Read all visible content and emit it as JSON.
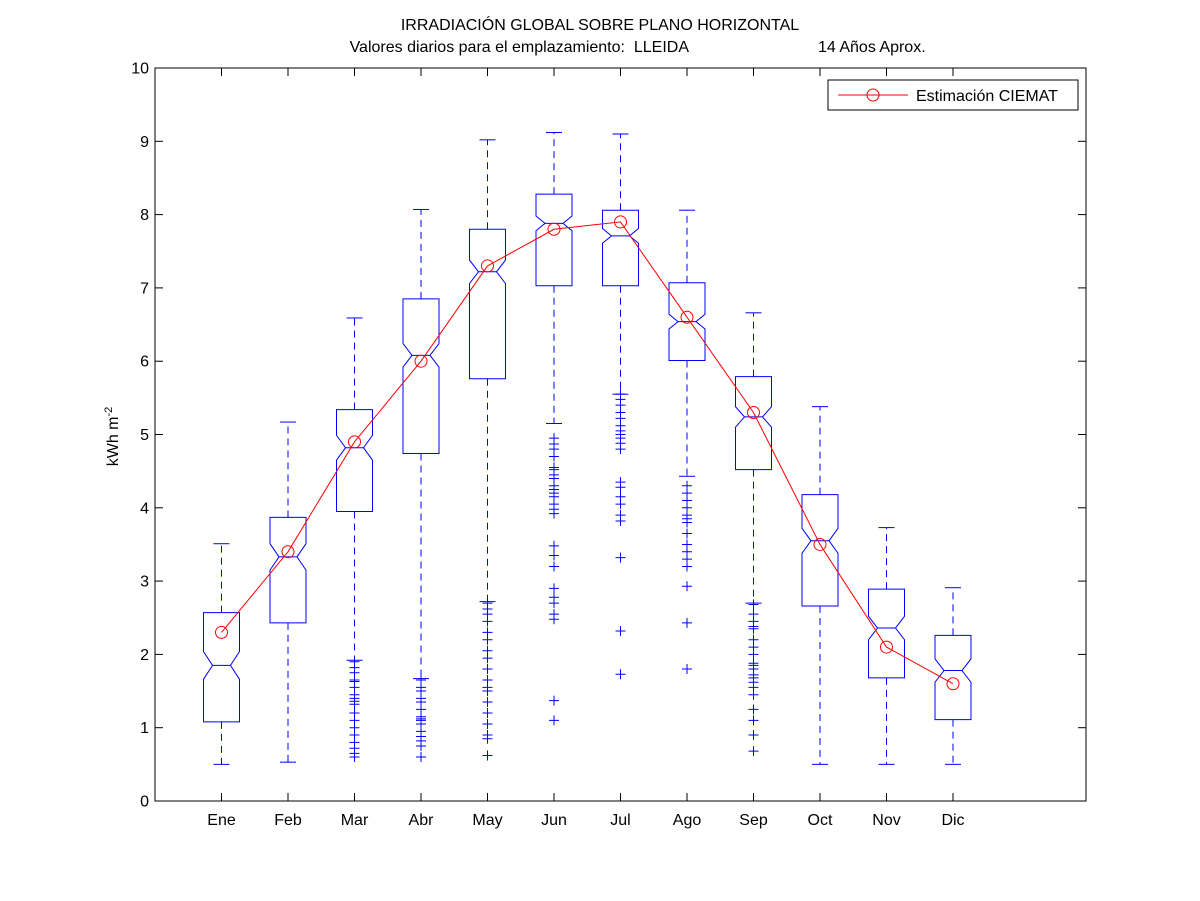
{
  "chart_data": {
    "type": "box",
    "title": "IRRADIACIÓN GLOBAL SOBRE PLANO HORIZONTAL",
    "subtitle": "Valores diarios para el emplazamiento:  LLEIDA",
    "subtitle_right": "14 Años Aprox.",
    "ylabel": "kWh m",
    "ylabel_superscript": "-2",
    "ylim": [
      0,
      10
    ],
    "yticks": [
      0,
      1,
      2,
      3,
      4,
      5,
      6,
      7,
      8,
      9,
      10
    ],
    "categories": [
      "Ene",
      "Feb",
      "Mar",
      "Abr",
      "May",
      "Jun",
      "Jul",
      "Ago",
      "Sep",
      "Oct",
      "Nov",
      "Dic"
    ],
    "boxes": [
      {
        "q1": 1.08,
        "median": 1.85,
        "q3": 2.57,
        "whisker_low": 0.5,
        "whisker_high": 3.51,
        "notch_low": 1.66,
        "notch_high": 2.04,
        "outliers": []
      },
      {
        "q1": 2.43,
        "median": 3.33,
        "q3": 3.87,
        "whisker_low": 0.53,
        "whisker_high": 5.17,
        "notch_low": 3.15,
        "notch_high": 3.51,
        "outliers": []
      },
      {
        "q1": 3.95,
        "median": 4.82,
        "q3": 5.34,
        "whisker_low": 1.92,
        "whisker_high": 6.59,
        "notch_low": 4.65,
        "notch_high": 4.99,
        "outliers": [
          1.9,
          1.82,
          1.75,
          1.65,
          1.63,
          1.55,
          1.45,
          1.4,
          1.36,
          1.32,
          1.2,
          1.1,
          1.0,
          0.9,
          0.8,
          0.72,
          0.65,
          0.6
        ]
      },
      {
        "q1": 4.74,
        "median": 6.08,
        "q3": 6.85,
        "whisker_low": 1.67,
        "whisker_high": 8.07,
        "notch_low": 5.92,
        "notch_high": 6.24,
        "outliers": [
          1.65,
          1.55,
          1.5,
          1.4,
          1.35,
          1.25,
          1.15,
          1.12,
          1.1,
          1.05,
          0.95,
          0.88,
          0.82,
          0.75,
          0.6
        ]
      },
      {
        "q1": 5.76,
        "median": 7.22,
        "q3": 7.8,
        "whisker_low": 2.72,
        "whisker_high": 9.02,
        "notch_low": 7.06,
        "notch_high": 7.38,
        "outliers": [
          2.7,
          2.62,
          2.55,
          2.45,
          2.3,
          2.2,
          2.05,
          1.95,
          1.8,
          1.65,
          1.55,
          1.5,
          1.35,
          1.2,
          1.05,
          0.9,
          0.85,
          0.62
        ]
      },
      {
        "q1": 7.03,
        "median": 7.88,
        "q3": 8.28,
        "whisker_low": 5.15,
        "whisker_high": 9.12,
        "notch_low": 7.78,
        "notch_high": 7.98,
        "outliers": [
          4.95,
          4.87,
          4.8,
          4.7,
          4.55,
          4.52,
          4.45,
          4.4,
          4.3,
          4.25,
          4.2,
          4.15,
          4.05,
          3.98,
          3.92,
          3.48,
          3.35,
          3.2,
          2.9,
          2.78,
          2.7,
          2.55,
          2.48,
          1.37,
          1.1
        ]
      },
      {
        "q1": 7.03,
        "median": 7.71,
        "q3": 8.06,
        "whisker_low": 5.55,
        "whisker_high": 9.1,
        "notch_low": 7.61,
        "notch_high": 7.81,
        "outliers": [
          5.55,
          5.48,
          5.4,
          5.3,
          5.22,
          5.12,
          5.05,
          5.0,
          4.95,
          4.88,
          4.8,
          4.35,
          4.28,
          4.15,
          4.05,
          3.9,
          3.82,
          3.32,
          2.32,
          1.73
        ]
      },
      {
        "q1": 6.01,
        "median": 6.54,
        "q3": 7.07,
        "whisker_low": 4.43,
        "whisker_high": 8.06,
        "notch_low": 6.44,
        "notch_high": 6.64,
        "outliers": [
          4.3,
          4.2,
          4.1,
          4.0,
          3.9,
          3.85,
          3.8,
          3.65,
          3.5,
          3.4,
          3.3,
          3.2,
          2.93,
          2.43,
          1.8
        ]
      },
      {
        "q1": 4.52,
        "median": 5.24,
        "q3": 5.79,
        "whisker_low": 2.7,
        "whisker_high": 6.66,
        "notch_low": 5.1,
        "notch_high": 5.38,
        "outliers": [
          2.68,
          2.55,
          2.45,
          2.38,
          2.35,
          2.2,
          2.1,
          2.0,
          1.88,
          1.85,
          1.8,
          1.72,
          1.68,
          1.62,
          1.55,
          1.45,
          1.25,
          1.1,
          0.9,
          0.68
        ]
      },
      {
        "q1": 2.66,
        "median": 3.55,
        "q3": 4.18,
        "whisker_low": 0.5,
        "whisker_high": 5.38,
        "notch_low": 3.38,
        "notch_high": 3.72,
        "outliers": []
      },
      {
        "q1": 1.68,
        "median": 2.36,
        "q3": 2.89,
        "whisker_low": 0.5,
        "whisker_high": 3.73,
        "notch_low": 2.2,
        "notch_high": 2.52,
        "outliers": []
      },
      {
        "q1": 1.11,
        "median": 1.78,
        "q3": 2.26,
        "whisker_low": 0.5,
        "whisker_high": 2.91,
        "notch_low": 1.62,
        "notch_high": 1.94,
        "outliers": []
      }
    ],
    "series": [
      {
        "name": "Estimación CIEMAT",
        "color": "#ff0000",
        "marker": "circle",
        "values": [
          2.3,
          3.4,
          4.9,
          6.0,
          7.3,
          7.8,
          7.9,
          6.6,
          5.3,
          3.5,
          2.1,
          1.6
        ]
      }
    ],
    "box_color": "#0000ff",
    "legend_position": "top-right",
    "grid": false
  }
}
